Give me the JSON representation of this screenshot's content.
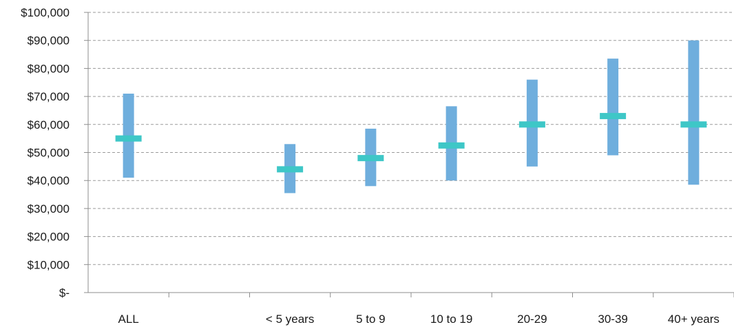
{
  "chart_data": {
    "type": "range",
    "categories": [
      "ALL",
      "",
      "< 5 years",
      "5 to 9",
      "10 to 19",
      "20-29",
      "30-39",
      "40+ years"
    ],
    "series": [
      {
        "values_low": [
          41000,
          null,
          35500,
          38000,
          40000,
          45000,
          49000,
          38500
        ]
      },
      {
        "values_high": [
          71000,
          null,
          53000,
          58500,
          66500,
          76000,
          83500,
          90000
        ]
      },
      {
        "values_mid": [
          55000,
          null,
          44000,
          48000,
          52500,
          60000,
          63000,
          60000
        ]
      }
    ],
    "y_ticks": [
      "$-",
      "$10,000",
      "$20,000",
      "$30,000",
      "$40,000",
      "$50,000",
      "$60,000",
      "$70,000",
      "$80,000",
      "$90,000",
      "$100,000"
    ],
    "ylim": [
      0,
      100000
    ],
    "grid": true,
    "colors": {
      "range_bar": "#6faedd",
      "midpoint": "#3ec7c7",
      "grid": "#9a9a9a",
      "axis": "#8c8c8c"
    }
  }
}
